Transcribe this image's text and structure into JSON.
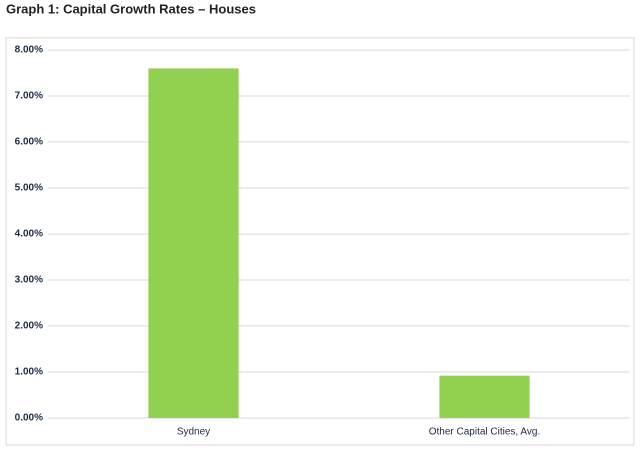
{
  "chart_data": {
    "type": "bar",
    "title": "Graph 1: Capital Growth Rates – Houses",
    "categories": [
      "Sydney",
      "Other Capital Cities, Avg."
    ],
    "values": [
      7.6,
      0.92
    ],
    "color": "#92d050",
    "ylim": [
      0,
      8
    ],
    "yticks": [
      {
        "value": 0,
        "label": "0.00%"
      },
      {
        "value": 1,
        "label": "1.00%"
      },
      {
        "value": 2,
        "label": "2.00%"
      },
      {
        "value": 3,
        "label": "3.00%"
      },
      {
        "value": 4,
        "label": "4.00%"
      },
      {
        "value": 5,
        "label": "5.00%"
      },
      {
        "value": 6,
        "label": "6.00%"
      },
      {
        "value": 7,
        "label": "7.00%"
      },
      {
        "value": 8,
        "label": "8.00%"
      }
    ],
    "grid": true
  }
}
